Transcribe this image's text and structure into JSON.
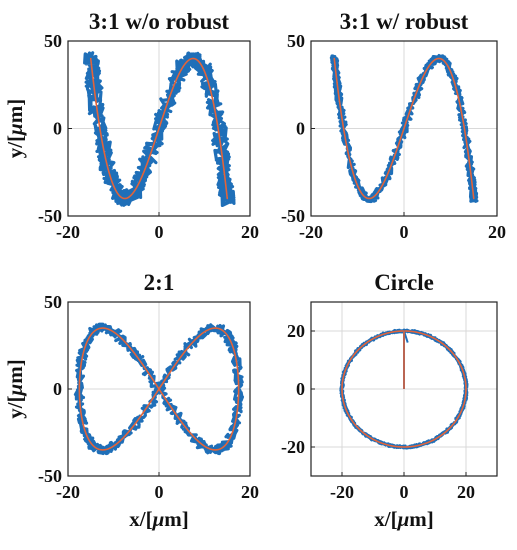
{
  "chart_data": [
    {
      "type": "line",
      "title": "3:1 w/o robust",
      "xlabel": "",
      "ylabel": "y/[μm]",
      "xlim": [
        -20,
        20
      ],
      "ylim": [
        -50,
        50
      ],
      "xticks": [
        -20,
        0,
        20
      ],
      "yticks": [
        -50,
        0,
        50
      ],
      "grid": true,
      "curve": {
        "kind": "lissajous",
        "ax": 15,
        "ay": 40,
        "fx": 1,
        "fy": 3
      },
      "series": [
        {
          "role": "measured",
          "color": "#1f6fb8",
          "noise": 1.6
        },
        {
          "role": "reference",
          "color": "#e2643a",
          "noise": 0
        }
      ]
    },
    {
      "type": "line",
      "title": "3:1 w/ robust",
      "xlabel": "",
      "ylabel": "",
      "xlim": [
        -20,
        20
      ],
      "ylim": [
        -50,
        50
      ],
      "xticks": [
        -20,
        0,
        20
      ],
      "yticks": [
        -50,
        0,
        50
      ],
      "grid": true,
      "curve": {
        "kind": "lissajous",
        "ax": 15,
        "ay": 40,
        "fx": 1,
        "fy": 3
      },
      "series": [
        {
          "role": "measured",
          "color": "#1f6fb8",
          "noise": 0.7
        },
        {
          "role": "reference",
          "color": "#e2643a",
          "noise": 0
        }
      ]
    },
    {
      "type": "line",
      "title": "2:1",
      "xlabel": "x/[μm]",
      "ylabel": "y/[μm]",
      "xlim": [
        -20,
        20
      ],
      "ylim": [
        -50,
        50
      ],
      "xticks": [
        -20,
        0,
        20
      ],
      "yticks": [
        -50,
        0,
        50
      ],
      "grid": true,
      "curve": {
        "kind": "lissajous",
        "ax": 17.5,
        "ay": 35,
        "fx": 1,
        "fy": 2
      },
      "series": [
        {
          "role": "measured",
          "color": "#1f6fb8",
          "noise": 0.9
        },
        {
          "role": "reference",
          "color": "#e2643a",
          "noise": 0
        }
      ]
    },
    {
      "type": "line",
      "title": "Circle",
      "xlabel": "x/[μm]",
      "ylabel": "",
      "xlim": [
        -30,
        30
      ],
      "ylim": [
        -30,
        30
      ],
      "xticks": [
        -20,
        0,
        20
      ],
      "yticks": [
        -20,
        0,
        20
      ],
      "grid": true,
      "curve": {
        "kind": "circle",
        "r": 20
      },
      "series": [
        {
          "role": "measured",
          "color": "#1f6fb8",
          "noise": 0.35
        },
        {
          "role": "reference",
          "color": "#e2643a",
          "noise": 0
        }
      ]
    }
  ]
}
